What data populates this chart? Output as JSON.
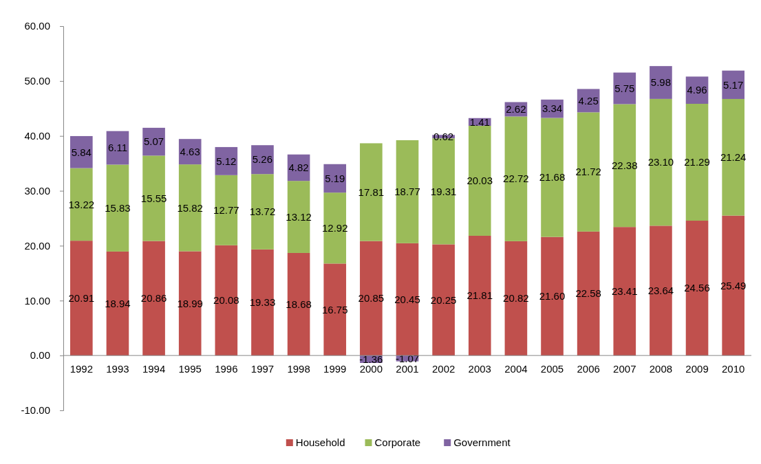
{
  "chart_data": {
    "type": "bar",
    "stacked": true,
    "categories": [
      "1992",
      "1993",
      "1994",
      "1995",
      "1996",
      "1997",
      "1998",
      "1999",
      "2000",
      "2001",
      "2002",
      "2003",
      "2004",
      "2005",
      "2006",
      "2007",
      "2008",
      "2009",
      "2010"
    ],
    "series": [
      {
        "name": "Household",
        "color": "#c0504d",
        "values": [
          20.91,
          18.94,
          20.86,
          18.99,
          20.08,
          19.33,
          18.68,
          16.75,
          20.85,
          20.45,
          20.25,
          21.81,
          20.82,
          21.6,
          22.58,
          23.41,
          23.64,
          24.56,
          25.49
        ],
        "value_labels": [
          "20.91",
          "18.94",
          "20.86",
          "18.99",
          "20.08",
          "19.33",
          "18.68",
          "16.75",
          "20.85",
          "20.45",
          "20.25",
          "21.81",
          "20.82",
          "21.60",
          "22.58",
          "23.41",
          "23.64",
          "24.56",
          "25.49"
        ]
      },
      {
        "name": "Corporate",
        "color": "#9bbb59",
        "values": [
          13.22,
          15.83,
          15.55,
          15.82,
          12.77,
          13.72,
          13.12,
          12.92,
          17.81,
          18.77,
          19.31,
          20.03,
          22.72,
          21.68,
          21.72,
          22.38,
          23.1,
          21.29,
          21.24
        ],
        "value_labels": [
          "13.22",
          "15.83",
          "15.55",
          "15.82",
          "12.77",
          "13.72",
          "13.12",
          "12.92",
          "17.81",
          "18.77",
          "19.31",
          "20.03",
          "22.72",
          "21.68",
          "21.72",
          "22.38",
          "23.10",
          "21.29",
          "21.24"
        ]
      },
      {
        "name": "Government",
        "color": "#8064a2",
        "values": [
          5.84,
          6.11,
          5.07,
          4.63,
          5.12,
          5.26,
          4.82,
          5.19,
          -1.36,
          -1.07,
          0.62,
          1.41,
          2.62,
          3.34,
          4.25,
          5.75,
          5.98,
          4.96,
          5.17
        ],
        "value_labels": [
          "5.84",
          "6.11",
          "5.07",
          "4.63",
          "5.12",
          "5.26",
          "4.82",
          "5.19",
          "-1.36",
          "-1.07",
          "0.62",
          "1.41",
          "2.62",
          "3.34",
          "4.25",
          "5.75",
          "5.98",
          "4.96",
          "5.17"
        ]
      }
    ],
    "ylim": [
      -10,
      60
    ],
    "yticks": [
      {
        "value": -10,
        "label": "-10.00"
      },
      {
        "value": 0,
        "label": "0.00"
      },
      {
        "value": 10,
        "label": "10.00"
      },
      {
        "value": 20,
        "label": "20.00"
      },
      {
        "value": 30,
        "label": "30.00"
      },
      {
        "value": 40,
        "label": "40.00"
      },
      {
        "value": 50,
        "label": "50.00"
      },
      {
        "value": 60,
        "label": "60.00"
      }
    ],
    "legend": "bottom"
  }
}
